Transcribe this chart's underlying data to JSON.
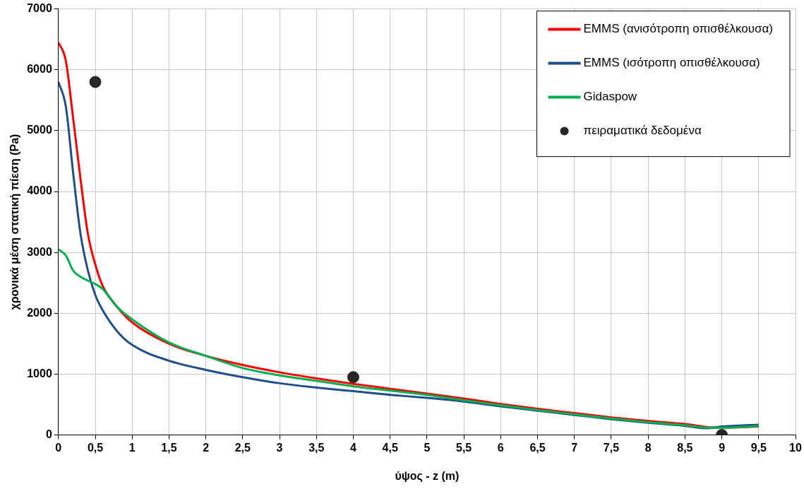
{
  "chart_data": {
    "type": "line",
    "xlabel": "ύψος - z (m)",
    "ylabel": "χρονικά μέση στατική πίεση (Pa)",
    "xlim": [
      0,
      10
    ],
    "xticks": [
      0,
      {
        "value": 0.5,
        "label": "0,5"
      },
      1,
      {
        "value": 1.5,
        "label": "1,5"
      },
      2,
      {
        "value": 2.5,
        "label": "2,5"
      },
      3,
      {
        "value": 3.5,
        "label": "3,5"
      },
      4,
      {
        "value": 4.5,
        "label": "4,5"
      },
      5,
      {
        "value": 5.5,
        "label": "5,5"
      },
      6,
      {
        "value": 6.5,
        "label": "6,5"
      },
      7,
      {
        "value": 7.5,
        "label": "7,5"
      },
      8,
      {
        "value": 8.5,
        "label": "8,5"
      },
      9,
      {
        "value": 9.5,
        "label": "9,5"
      },
      10
    ],
    "ylim": [
      0,
      7000
    ],
    "yticks": [
      0,
      1000,
      2000,
      3000,
      4000,
      5000,
      6000,
      7000
    ],
    "grid": true,
    "legend": "top right",
    "marker": "none",
    "line_style": "solid",
    "series": [
      {
        "name": "EMMS (ανισότροπη οπισθέλκουσα)",
        "color": "#ff0000",
        "x": [
          0,
          0.1,
          0.2,
          0.3,
          0.4,
          0.5,
          0.6,
          0.8,
          1,
          1.5,
          2,
          2.5,
          3,
          3.5,
          4,
          4.5,
          5,
          5.5,
          6,
          6.5,
          7,
          7.5,
          8,
          8.5,
          8.8,
          9,
          9.5
        ],
        "values": [
          6450,
          6150,
          5200,
          4200,
          3300,
          2800,
          2450,
          2100,
          1850,
          1500,
          1300,
          1150,
          1030,
          930,
          840,
          760,
          680,
          600,
          510,
          430,
          360,
          290,
          230,
          180,
          130,
          120,
          140
        ]
      },
      {
        "name": "EMMS (ισότροπη οπισθέλκουσα)",
        "color": "#1f4e8c",
        "x": [
          0,
          0.1,
          0.2,
          0.3,
          0.4,
          0.5,
          0.6,
          0.8,
          1,
          1.5,
          2,
          2.5,
          3,
          3.5,
          4,
          4.5,
          5,
          5.5,
          6,
          6.5,
          7,
          7.5,
          8,
          8.5,
          8.8,
          9,
          9.5
        ],
        "values": [
          5800,
          5400,
          4300,
          3300,
          2700,
          2300,
          2050,
          1700,
          1480,
          1220,
          1070,
          950,
          850,
          780,
          720,
          660,
          610,
          550,
          470,
          400,
          330,
          260,
          200,
          150,
          110,
          140,
          170
        ]
      },
      {
        "name": "Gidaspow",
        "color": "#00b050",
        "x": [
          0,
          0.1,
          0.2,
          0.3,
          0.5,
          0.6,
          0.7,
          0.8,
          1,
          1.5,
          2,
          2.5,
          3,
          3.5,
          4,
          4.5,
          5,
          5.5,
          6,
          6.5,
          7,
          7.5,
          8,
          8.5,
          8.8,
          9,
          9.5
        ],
        "values": [
          3050,
          2950,
          2700,
          2600,
          2480,
          2400,
          2250,
          2100,
          1900,
          1520,
          1300,
          1100,
          980,
          890,
          800,
          730,
          660,
          570,
          490,
          410,
          340,
          270,
          210,
          160,
          120,
          120,
          150
        ]
      },
      {
        "name": "πειραματικά δεδομένα",
        "type": "scatter",
        "marker": "circle",
        "color": "#262626",
        "x": [
          0.5,
          4,
          9
        ],
        "values": [
          5800,
          950,
          0
        ]
      }
    ]
  }
}
